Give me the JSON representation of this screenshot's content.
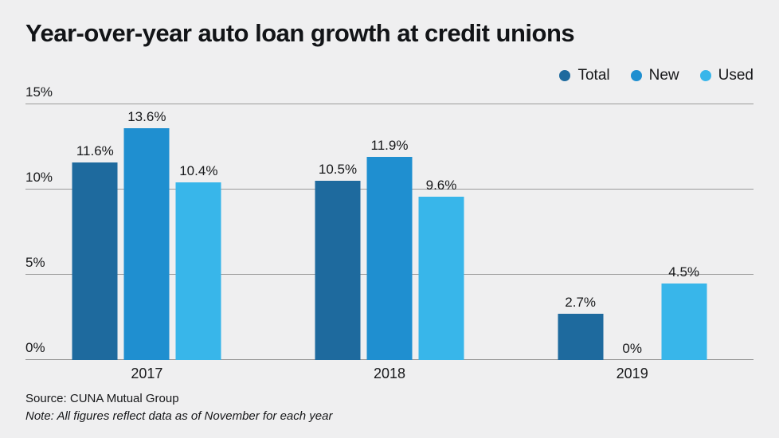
{
  "title": "Year-over-year auto loan growth at credit unions",
  "footer": {
    "source": "Source: CUNA Mutual Group",
    "note": "Note: All figures reflect data as of November for each year"
  },
  "colors": {
    "background": "#efeff0",
    "grid": "#9b9b9b",
    "text": "#17181a",
    "total": "#1e6a9e",
    "new": "#1f8fd0",
    "used": "#38b6ea"
  },
  "chart_data": {
    "type": "bar",
    "title": "Year-over-year auto loan growth at credit unions",
    "categories": [
      "2017",
      "2018",
      "2019"
    ],
    "series": [
      {
        "name": "Total",
        "color": "#1e6a9e",
        "values": [
          11.6,
          10.5,
          2.7
        ],
        "labels": [
          "11.6%",
          "10.5%",
          "2.7%"
        ]
      },
      {
        "name": "New",
        "color": "#1f8fd0",
        "values": [
          13.6,
          11.9,
          0
        ],
        "labels": [
          "13.6%",
          "11.9%",
          "0%"
        ]
      },
      {
        "name": "Used",
        "color": "#38b6ea",
        "values": [
          10.4,
          9.6,
          4.5
        ],
        "labels": [
          "10.4%",
          "9.6%",
          "4.5%"
        ]
      }
    ],
    "xlabel": "",
    "ylabel": "",
    "ylim": [
      0,
      15
    ],
    "yticks": [
      {
        "value": 0,
        "label": "0%"
      },
      {
        "value": 5,
        "label": "5%"
      },
      {
        "value": 10,
        "label": "10%"
      },
      {
        "value": 15,
        "label": "15%"
      }
    ],
    "grid": true,
    "legend_position": "top-right"
  }
}
